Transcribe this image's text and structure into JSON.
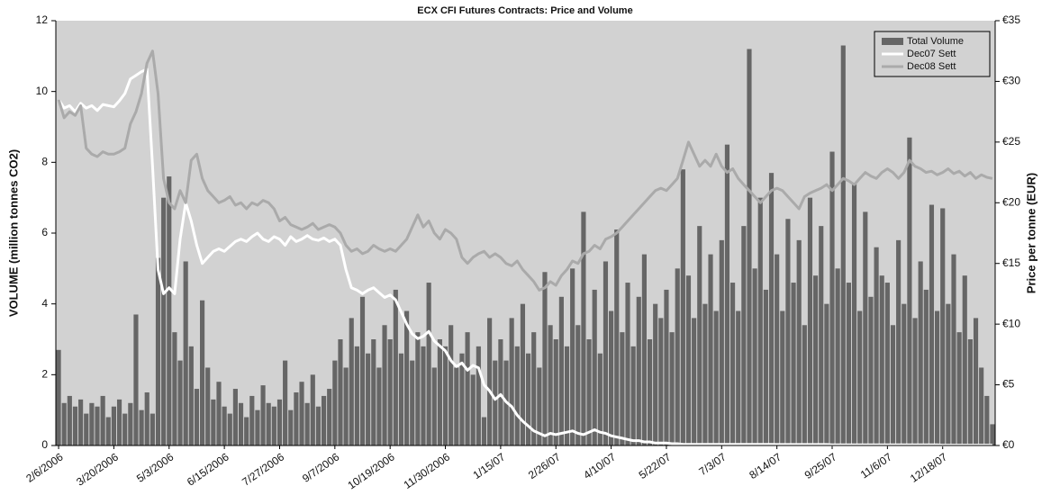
{
  "chart_data": {
    "type": "bar-line",
    "title": "ECX CFI Futures Contracts: Price and Volume",
    "ylabel": "VOLUME (million tonnes CO2)",
    "y2label": "Price per tonne (EUR)",
    "ylim": [
      0,
      12
    ],
    "yticks": [
      0,
      2,
      4,
      6,
      8,
      10,
      12
    ],
    "y2lim": [
      0,
      35
    ],
    "y2ticks": [
      {
        "value": 0,
        "label": "€0"
      },
      {
        "value": 5,
        "label": "€5"
      },
      {
        "value": 10,
        "label": "€10"
      },
      {
        "value": 15,
        "label": "€15"
      },
      {
        "value": 20,
        "label": "€20"
      },
      {
        "value": 25,
        "label": "€25"
      },
      {
        "value": 30,
        "label": "€30"
      },
      {
        "value": 35,
        "label": "€35"
      }
    ],
    "legend": "upper right",
    "categories": [
      "2/6/2006",
      null,
      null,
      null,
      null,
      null,
      null,
      null,
      null,
      null,
      "3/20/2006",
      null,
      null,
      null,
      null,
      null,
      null,
      null,
      null,
      null,
      "5/3/2006",
      null,
      null,
      null,
      null,
      null,
      null,
      null,
      null,
      null,
      "6/15/2006",
      null,
      null,
      null,
      null,
      null,
      null,
      null,
      null,
      null,
      "7/27/2006",
      null,
      null,
      null,
      null,
      null,
      null,
      null,
      null,
      null,
      "9/7/2006",
      null,
      null,
      null,
      null,
      null,
      null,
      null,
      null,
      null,
      "10/19/2006",
      null,
      null,
      null,
      null,
      null,
      null,
      null,
      null,
      null,
      "11/30/2006",
      null,
      null,
      null,
      null,
      null,
      null,
      null,
      null,
      null,
      "1/15/07",
      null,
      null,
      null,
      null,
      null,
      null,
      null,
      null,
      null,
      "2/26/07",
      null,
      null,
      null,
      null,
      null,
      null,
      null,
      null,
      null,
      "4/10/07",
      null,
      null,
      null,
      null,
      null,
      null,
      null,
      null,
      null,
      "5/22/07",
      null,
      null,
      null,
      null,
      null,
      null,
      null,
      null,
      null,
      "7/3/07",
      null,
      null,
      null,
      null,
      null,
      null,
      null,
      null,
      null,
      "8/14/07",
      null,
      null,
      null,
      null,
      null,
      null,
      null,
      null,
      null,
      "9/25/07",
      null,
      null,
      null,
      null,
      null,
      null,
      null,
      null,
      null,
      "11/6/07",
      null,
      null,
      null,
      null,
      null,
      null,
      null,
      null,
      null,
      "12/18/07",
      null,
      null,
      null,
      null,
      null,
      null,
      null,
      null,
      null
    ],
    "series": [
      {
        "name": "Total Volume",
        "type": "bar",
        "color": "#666666",
        "values": [
          2.7,
          1.2,
          1.4,
          1.1,
          1.3,
          0.9,
          1.2,
          1.1,
          1.4,
          0.8,
          1.1,
          1.3,
          0.9,
          1.2,
          3.7,
          1.0,
          1.5,
          0.9,
          5.3,
          7.0,
          7.6,
          3.2,
          2.4,
          5.2,
          2.8,
          1.6,
          4.1,
          2.2,
          1.3,
          1.8,
          1.1,
          0.9,
          1.6,
          1.2,
          0.8,
          1.4,
          1.0,
          1.7,
          1.2,
          1.1,
          1.3,
          2.4,
          1.0,
          1.5,
          1.8,
          1.2,
          2.0,
          1.1,
          1.4,
          1.6,
          2.4,
          3.0,
          2.2,
          3.6,
          2.8,
          4.2,
          2.6,
          3.0,
          2.2,
          3.4,
          3.0,
          4.4,
          2.6,
          3.8,
          2.4,
          3.2,
          2.8,
          4.6,
          2.2,
          3.0,
          2.8,
          3.4,
          2.2,
          2.6,
          3.2,
          2.0,
          2.8,
          0.8,
          3.6,
          2.4,
          3.0,
          2.4,
          3.6,
          2.8,
          4.0,
          2.6,
          3.2,
          2.2,
          4.9,
          3.4,
          3.0,
          4.2,
          2.8,
          5.0,
          3.4,
          6.6,
          3.0,
          4.4,
          2.6,
          5.2,
          3.8,
          6.1,
          3.2,
          4.6,
          2.8,
          4.2,
          5.4,
          3.0,
          4.0,
          3.6,
          4.4,
          3.2,
          5.0,
          7.8,
          4.8,
          3.6,
          6.2,
          4.0,
          5.4,
          3.8,
          5.8,
          8.5,
          4.6,
          3.8,
          6.2,
          11.2,
          5.0,
          7.0,
          4.4,
          7.7,
          5.4,
          3.8,
          6.4,
          4.6,
          5.8,
          3.4,
          7.0,
          4.8,
          6.2,
          4.0,
          8.3,
          5.0,
          11.3,
          4.6,
          7.4,
          3.8,
          6.6,
          4.2,
          5.6,
          4.8,
          4.6,
          3.4,
          5.8,
          4.0,
          8.7,
          3.6,
          5.2,
          4.4,
          6.8,
          3.8,
          6.7,
          4.0,
          5.4,
          3.2,
          4.8,
          3.0,
          3.6,
          2.2,
          1.4,
          0.6
        ]
      },
      {
        "name": "Dec07 Sett",
        "type": "line",
        "axis": "y2",
        "color": "#ffffff",
        "values": [
          28.5,
          27.8,
          28.0,
          27.5,
          28.2,
          27.8,
          28.0,
          27.6,
          28.1,
          28.0,
          27.9,
          28.4,
          29.0,
          30.2,
          30.5,
          30.8,
          31.0,
          23.0,
          14.5,
          12.5,
          13.0,
          12.5,
          17.0,
          20.0,
          18.5,
          16.5,
          15.0,
          15.5,
          16.0,
          16.2,
          16.0,
          16.4,
          16.8,
          17.0,
          16.8,
          17.2,
          17.5,
          17.0,
          16.8,
          17.2,
          17.0,
          16.5,
          17.2,
          16.8,
          17.0,
          17.3,
          17.0,
          16.9,
          17.1,
          16.8,
          17.0,
          16.5,
          14.5,
          13.0,
          12.8,
          12.5,
          12.8,
          13.0,
          12.6,
          12.2,
          12.4,
          12.0,
          11.0,
          10.0,
          9.2,
          8.8,
          9.0,
          9.4,
          8.6,
          8.2,
          7.8,
          7.0,
          6.5,
          6.8,
          6.2,
          6.6,
          6.4,
          5.0,
          4.5,
          3.8,
          4.2,
          3.6,
          3.2,
          2.5,
          2.0,
          1.6,
          1.2,
          1.0,
          0.8,
          1.0,
          0.9,
          1.0,
          1.1,
          1.2,
          1.0,
          0.9,
          1.1,
          1.3,
          1.1,
          1.0,
          0.8,
          0.7,
          0.6,
          0.5,
          0.4,
          0.4,
          0.3,
          0.3,
          0.2,
          0.2,
          0.2,
          0.15,
          0.15,
          0.1,
          0.1,
          0.1,
          0.1,
          0.1,
          0.1,
          0.1,
          0.1,
          0.1,
          0.1,
          0.1,
          0.1,
          0.1,
          0.1,
          0.1,
          0.1,
          0.1,
          0.08,
          0.08,
          0.08,
          0.08,
          0.08,
          0.08,
          0.08,
          0.08,
          0.08,
          0.08,
          0.06,
          0.06,
          0.06,
          0.06,
          0.06,
          0.06,
          0.06,
          0.06,
          0.06,
          0.06,
          0.05,
          0.05,
          0.05,
          0.05,
          0.05,
          0.05,
          0.05,
          0.05,
          0.05,
          0.05,
          0.03,
          0.03,
          0.03,
          0.03,
          0.03,
          0.03,
          0.03,
          0.03,
          0.03,
          0.03
        ]
      },
      {
        "name": "Dec08 Sett",
        "type": "line",
        "axis": "y2",
        "color": "#aaaaaa",
        "values": [
          28.5,
          27.0,
          27.5,
          27.2,
          28.0,
          24.5,
          24.0,
          23.8,
          24.2,
          24.0,
          24.0,
          24.2,
          24.5,
          26.5,
          27.5,
          29.0,
          31.5,
          32.5,
          29.0,
          22.0,
          20.0,
          19.5,
          21.0,
          20.0,
          23.5,
          24.0,
          22.0,
          21.0,
          20.5,
          20.0,
          20.2,
          20.5,
          19.8,
          20.0,
          19.5,
          20.0,
          19.8,
          20.2,
          20.0,
          19.5,
          18.5,
          18.8,
          18.2,
          18.0,
          17.8,
          18.0,
          18.3,
          17.8,
          18.0,
          18.2,
          18.0,
          17.5,
          16.5,
          16.0,
          16.2,
          15.8,
          16.0,
          16.5,
          16.2,
          16.0,
          16.2,
          16.0,
          16.5,
          17.0,
          18.0,
          19.0,
          18.0,
          18.5,
          17.5,
          17.0,
          17.8,
          17.5,
          17.0,
          15.5,
          15.0,
          15.5,
          15.8,
          16.0,
          15.5,
          15.8,
          15.5,
          15.0,
          14.8,
          15.2,
          14.5,
          14.0,
          13.5,
          12.8,
          13.0,
          13.5,
          13.2,
          14.0,
          14.5,
          15.2,
          15.0,
          15.8,
          16.0,
          16.5,
          16.2,
          17.0,
          17.2,
          17.5,
          18.0,
          18.5,
          19.0,
          19.5,
          20.0,
          20.5,
          21.0,
          21.2,
          21.0,
          21.5,
          22.0,
          23.5,
          25.0,
          24.0,
          23.0,
          23.5,
          23.0,
          24.0,
          23.0,
          22.5,
          22.8,
          22.0,
          21.5,
          21.0,
          20.5,
          20.0,
          20.5,
          21.0,
          21.2,
          21.0,
          20.5,
          20.0,
          19.5,
          20.5,
          20.8,
          21.0,
          21.2,
          21.5,
          21.0,
          21.5,
          22.0,
          21.8,
          21.5,
          22.0,
          22.5,
          22.2,
          22.0,
          22.5,
          22.8,
          22.5,
          22.0,
          22.5,
          23.5,
          23.0,
          22.8,
          22.5,
          22.6,
          22.3,
          22.5,
          22.8,
          22.4,
          22.6,
          22.2,
          22.5,
          22.0,
          22.3,
          22.1,
          22.0
        ]
      }
    ]
  }
}
